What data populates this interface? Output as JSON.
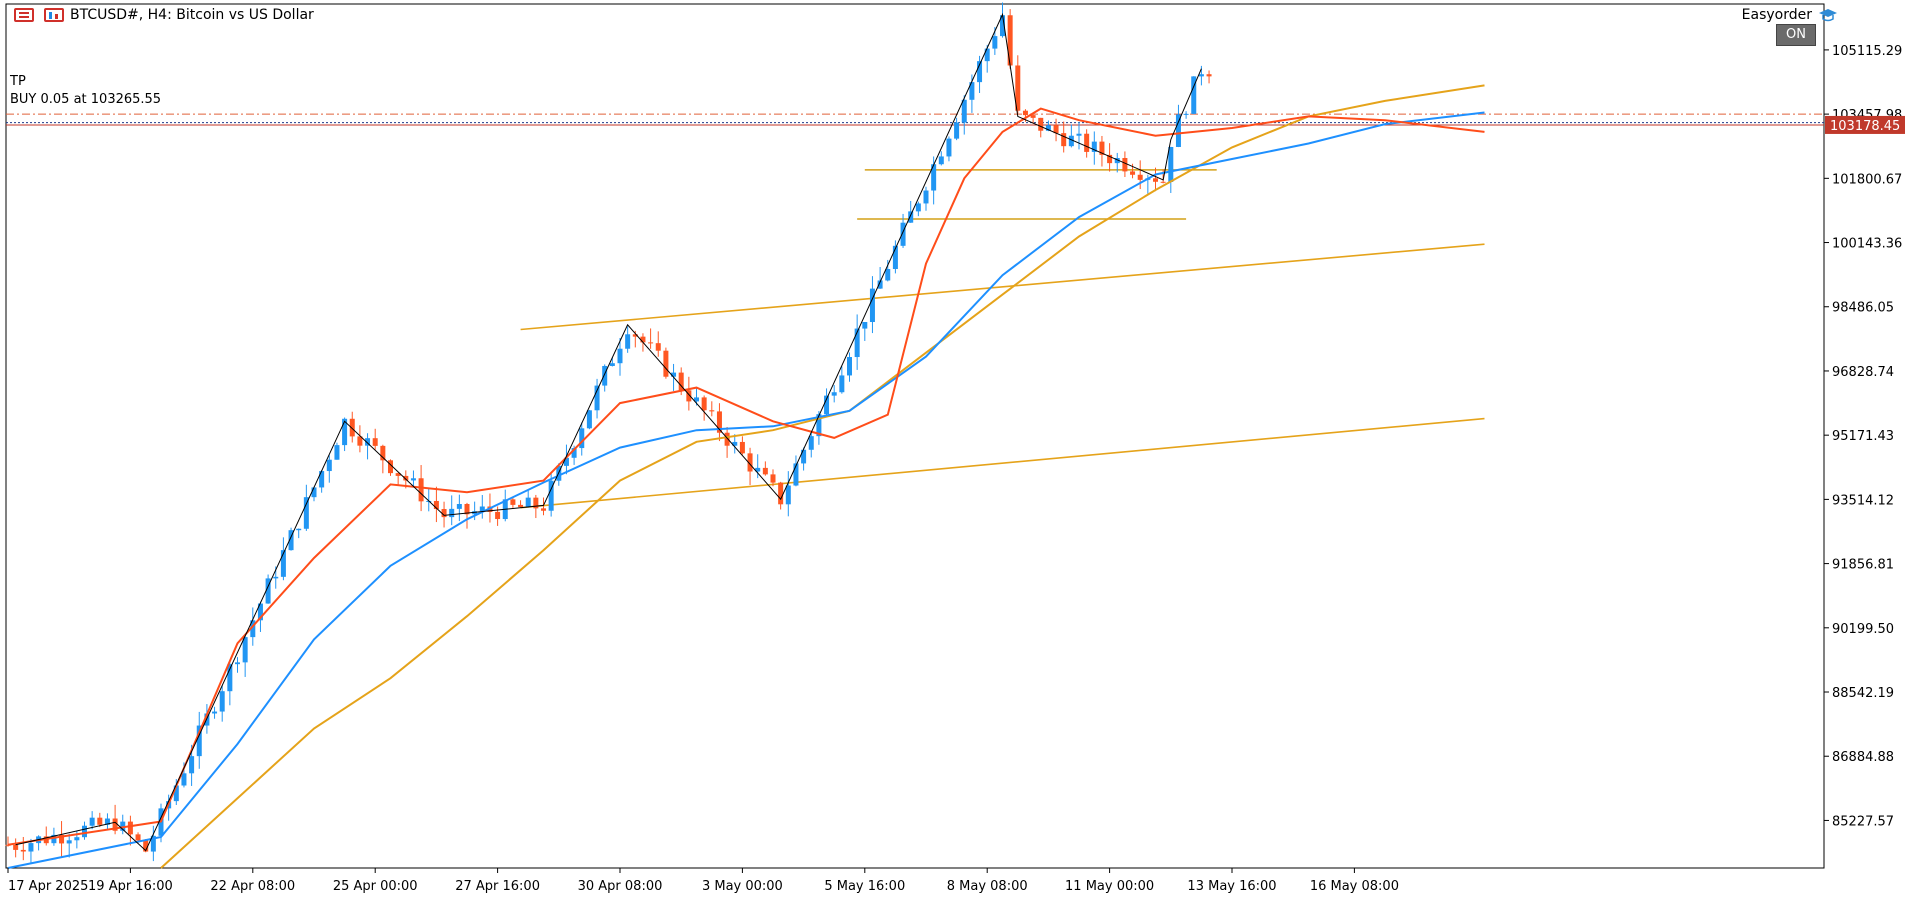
{
  "header": {
    "symbol_title": "BTCUSD#, H4:  Bitcoin vs US Dollar",
    "menu_icon": "hamburger-menu-icon",
    "chart_icon": "chart-window-icon"
  },
  "trade_lines": {
    "tp_label": "TP",
    "buy_label": "BUY 0.05 at 103265.55",
    "tp_price": 103457.98,
    "buy_price": 103265.55,
    "tp_color": "#e0623a",
    "buy_color": "#1f3a8a"
  },
  "expert": {
    "name": "Easyorder",
    "icon": "graduation-cap-icon",
    "status": "ON"
  },
  "price_scale": {
    "labels": [
      "105115.29",
      "103457.98",
      "101800.67",
      "100143.36",
      "98486.05",
      "96828.74",
      "95171.43",
      "93514.12",
      "91856.81",
      "90199.50",
      "88542.19",
      "86884.88",
      "85227.57"
    ],
    "current_price_label": "103178.45"
  },
  "time_scale": {
    "labels": [
      "17 Apr 2025",
      "19 Apr 16:00",
      "22 Apr 08:00",
      "25 Apr 00:00",
      "27 Apr 16:00",
      "30 Apr 08:00",
      "3 May 00:00",
      "5 May 16:00",
      "8 May 08:00",
      "11 May 00:00",
      "13 May 16:00",
      "16 May 08:00"
    ]
  },
  "colors": {
    "bull": "#2196f3",
    "bear": "#ff5722",
    "ema_fast": "#ff4d1a",
    "ema_mid": "#1e90ff",
    "ema_slow": "#e5a31a",
    "channel": "#e5a31a",
    "zigzag": "#000000",
    "level": "#d4a017"
  },
  "chart_data": {
    "type": "candlestick",
    "timeframe": "H4",
    "ylim": [
      84000,
      106300
    ],
    "xlim_bars": [
      0,
      193
    ],
    "key_points": {
      "x_bar": [
        1,
        14,
        18,
        44,
        57,
        70,
        81,
        101,
        130,
        132,
        151,
        152,
        156
      ],
      "close": [
        84600,
        85180,
        84450,
        95530,
        93100,
        93360,
        98020,
        93520,
        106030,
        103400,
        101760,
        102800,
        104630
      ]
    },
    "ema_fast": {
      "x_bar": [
        0,
        20,
        30,
        40,
        50,
        60,
        70,
        80,
        90,
        100,
        108,
        115,
        120,
        125,
        130,
        135,
        140,
        150,
        160,
        170,
        180,
        193
      ],
      "y": [
        84600,
        85200,
        89800,
        92000,
        93900,
        93700,
        94000,
        96000,
        96400,
        95530,
        95100,
        95700,
        99600,
        101800,
        103000,
        103600,
        103300,
        102900,
        103100,
        103400,
        103300,
        103000
      ]
    },
    "ema_mid": {
      "x_bar": [
        0,
        20,
        30,
        40,
        50,
        60,
        70,
        80,
        90,
        100,
        110,
        120,
        130,
        140,
        150,
        160,
        170,
        180,
        193
      ],
      "y": [
        84000,
        84800,
        87200,
        89900,
        91800,
        93000,
        93950,
        94850,
        95300,
        95400,
        95800,
        97200,
        99300,
        100800,
        101900,
        102300,
        102700,
        103200,
        103500
      ]
    },
    "ema_slow": {
      "x_bar": [
        20,
        30,
        40,
        50,
        60,
        70,
        80,
        90,
        100,
        110,
        120,
        130,
        140,
        150,
        160,
        170,
        180,
        193
      ],
      "y": [
        84000,
        85800,
        87600,
        88900,
        90500,
        92200,
        94000,
        95000,
        95300,
        95800,
        97300,
        98800,
        100300,
        101500,
        102600,
        103400,
        103800,
        104200
      ]
    },
    "zigzag": {
      "x_bar": [
        1,
        14,
        18,
        44,
        57,
        70,
        81,
        101,
        130,
        132,
        151,
        152,
        156
      ],
      "y": [
        84600,
        85180,
        84450,
        95530,
        93100,
        93360,
        98020,
        93520,
        106030,
        103400,
        101760,
        102800,
        104630
      ]
    },
    "channel_upper": {
      "x_bar": [
        67,
        193
      ],
      "y": [
        97900,
        100100
      ]
    },
    "channel_lower": {
      "x_bar": [
        67,
        193
      ],
      "y": [
        93300,
        95600
      ]
    },
    "range_levels": [
      {
        "x_bar": [
          112,
          158
        ],
        "y": 102020
      },
      {
        "x_bar": [
          111,
          154
        ],
        "y": 100750
      }
    ]
  }
}
